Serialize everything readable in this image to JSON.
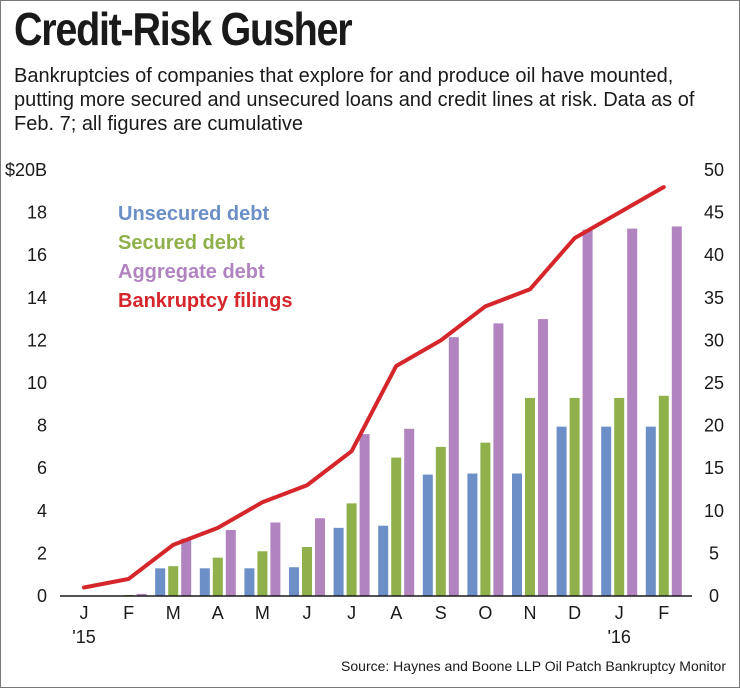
{
  "title": "Credit-Risk Gusher",
  "subtitle": "Bankruptcies of companies that explore for and produce oil have mounted, putting more secured and unsecured loans and credit lines at risk. Data as of Feb. 7; all figures are cumulative",
  "source": "Source: Haynes and Boone LLP Oil Patch Bankruptcy Monitor",
  "chart_data": {
    "type": "bar",
    "categories": [
      "J",
      "F",
      "M",
      "A",
      "M",
      "J",
      "J",
      "A",
      "S",
      "O",
      "N",
      "D",
      "J",
      "F"
    ],
    "year_labels": [
      {
        "index": 0,
        "label": "'15"
      },
      {
        "index": 12,
        "label": "'16"
      }
    ],
    "series": [
      {
        "name": "Unsecured debt",
        "type": "bar",
        "axis": "left",
        "color": "#6b8fc6",
        "values": [
          0,
          0,
          1.3,
          1.3,
          1.3,
          1.35,
          3.2,
          3.3,
          5.7,
          5.75,
          5.75,
          7.95,
          7.95,
          7.95
        ]
      },
      {
        "name": "Secured debt",
        "type": "bar",
        "axis": "left",
        "color": "#8fb04a",
        "values": [
          0,
          0.05,
          1.4,
          1.8,
          2.1,
          2.3,
          4.35,
          6.5,
          7.0,
          7.2,
          9.3,
          9.3,
          9.3,
          9.4
        ]
      },
      {
        "name": "Aggregate debt",
        "type": "bar",
        "axis": "left",
        "color": "#b184c0",
        "values": [
          0,
          0.1,
          2.7,
          3.1,
          3.45,
          3.65,
          7.6,
          7.85,
          12.15,
          12.8,
          13.0,
          17.2,
          17.25,
          17.35
        ]
      },
      {
        "name": "Bankruptcy filings",
        "type": "line",
        "axis": "right",
        "color": "#d4262b",
        "values": [
          1,
          2,
          6,
          8,
          11,
          13,
          17,
          27,
          30,
          34,
          36,
          42,
          45,
          48
        ]
      }
    ],
    "y_left": {
      "min": 0,
      "max": 20,
      "ticks": [
        "0",
        "2",
        "4",
        "6",
        "8",
        "10",
        "12",
        "14",
        "16",
        "18",
        "$20B"
      ]
    },
    "y_right": {
      "min": 0,
      "max": 50,
      "ticks": [
        "0",
        "5",
        "10",
        "15",
        "20",
        "25",
        "30",
        "35",
        "40",
        "45",
        "50"
      ]
    },
    "grid": false,
    "legend_position": "top-left"
  }
}
